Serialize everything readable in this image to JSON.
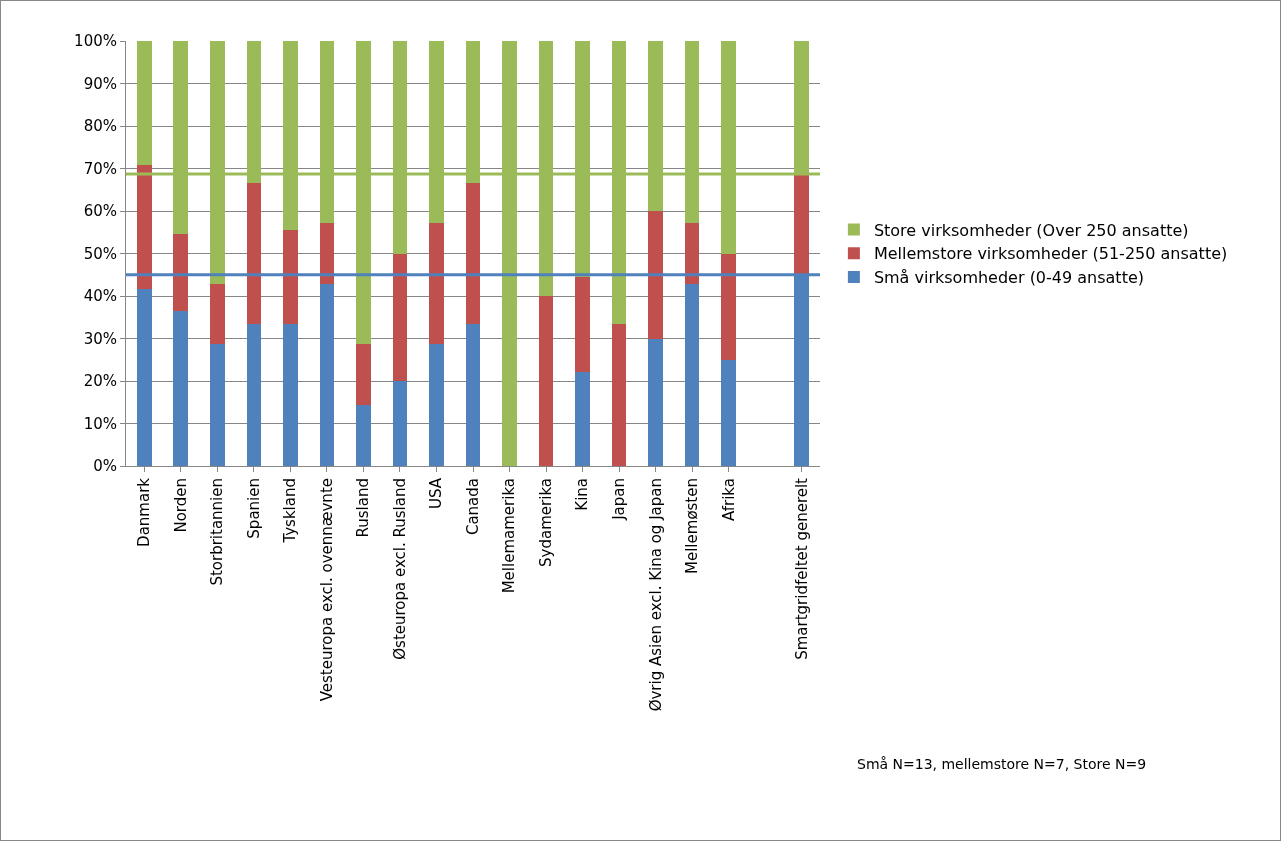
{
  "chart_data": {
    "type": "bar",
    "stacked": true,
    "categories": [
      "Danmark",
      "Norden",
      "Storbritannien",
      "Spanien",
      "Tyskland",
      "Vesteuropa excl. ovennævnte",
      "Rusland",
      "Østeuropa excl. Rusland",
      "USA",
      "Canada",
      "Mellemamerika",
      "Sydamerika",
      "Kina",
      "Japan",
      "Øvrig Asien excl. Kina og Japan",
      "Mellemøsten",
      "Afrika",
      null,
      "Smartgridfeltet generelt"
    ],
    "series": [
      {
        "name": "Små virksomheder (0-49 ansatte)",
        "color": "#4f81bd",
        "values": [
          41.7,
          36.4,
          28.6,
          33.3,
          33.3,
          42.9,
          14.3,
          20,
          28.6,
          33.3,
          0,
          0,
          22.2,
          0,
          30,
          42.9,
          25,
          null,
          44.8
        ]
      },
      {
        "name": "Mellemstore virksomheder (51-250 ansatte)",
        "color": "#c0504d",
        "values": [
          29.2,
          18.2,
          14.3,
          33.3,
          22.2,
          14.3,
          14.3,
          30,
          28.6,
          33.3,
          0,
          40,
          22.2,
          33.3,
          30,
          14.3,
          25,
          null,
          23.6
        ]
      },
      {
        "name": "Store virksomheder (Over 250 ansatte)",
        "color": "#9bbb59",
        "values": [
          29.1,
          45.4,
          57.1,
          33.4,
          44.5,
          42.8,
          71.4,
          50,
          42.8,
          33.4,
          100,
          60,
          55.6,
          66.7,
          40,
          42.8,
          50,
          null,
          31.6
        ]
      }
    ],
    "ylim": [
      0,
      100
    ],
    "yticks": [
      {
        "value": 0,
        "label": "0%"
      },
      {
        "value": 10,
        "label": "10%"
      },
      {
        "value": 20,
        "label": "20%"
      },
      {
        "value": 30,
        "label": "30%"
      },
      {
        "value": 40,
        "label": "40%"
      },
      {
        "value": 50,
        "label": "50%"
      },
      {
        "value": 60,
        "label": "60%"
      },
      {
        "value": 70,
        "label": "70%"
      },
      {
        "value": 80,
        "label": "80%"
      },
      {
        "value": 90,
        "label": "90%"
      },
      {
        "value": 100,
        "label": "100%"
      }
    ],
    "grid": "y",
    "legend": "right",
    "ref_lines": [
      {
        "axis": "y",
        "value": 45,
        "color": "#4f81bd"
      },
      {
        "axis": "y",
        "value": 68.7,
        "color": "#9bbb59"
      }
    ],
    "annotations": [
      "Små N=13, mellemstore N=7, Store N=9"
    ]
  }
}
